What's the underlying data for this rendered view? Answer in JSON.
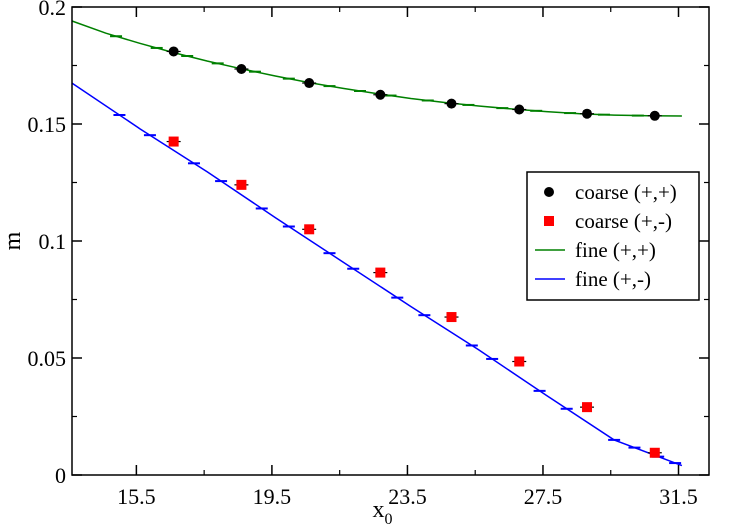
{
  "chart_data": {
    "type": "scatter",
    "xlabel": "x",
    "xlabel_sub": "0",
    "ylabel": "m",
    "xlim": [
      13.6,
      32.4
    ],
    "ylim": [
      0,
      0.2
    ],
    "xticks": [
      15.5,
      19.5,
      23.5,
      27.5,
      31.5
    ],
    "xtick_labels": [
      "15.5",
      "19.5",
      "23.5",
      "27.5",
      "31.5"
    ],
    "yticks": [
      0,
      0.05,
      0.1,
      0.15,
      0.2
    ],
    "ytick_labels": [
      "0",
      "0.05",
      "0.1",
      "0.15",
      "0.2"
    ],
    "legend_position": "right, middle",
    "series": [
      {
        "name": "coarse (+,+)",
        "kind": "points",
        "marker": "circle",
        "color": "#000000",
        "x": [
          16.6,
          18.6,
          20.6,
          22.7,
          24.8,
          26.8,
          28.8,
          30.8
        ],
        "y": [
          0.181,
          0.1735,
          0.1675,
          0.1625,
          0.1587,
          0.1562,
          0.1544,
          0.1535
        ]
      },
      {
        "name": "coarse (+,-)",
        "kind": "points",
        "marker": "square",
        "color": "#ff0000",
        "x": [
          16.6,
          18.6,
          20.6,
          22.7,
          24.8,
          26.8,
          28.8,
          30.8
        ],
        "y": [
          0.1425,
          0.124,
          0.105,
          0.0865,
          0.0675,
          0.0485,
          0.029,
          0.0095
        ]
      },
      {
        "name": "fine (+,+)",
        "kind": "line",
        "color": "#008000",
        "x": [
          13.6,
          14.6,
          15.6,
          16.6,
          17.6,
          18.6,
          19.6,
          20.6,
          21.6,
          22.6,
          23.6,
          24.6,
          25.6,
          26.6,
          27.6,
          28.6,
          29.6,
          30.6,
          31.6
        ],
        "y": [
          0.194,
          0.1888,
          0.1845,
          0.1805,
          0.1769,
          0.1736,
          0.1705,
          0.1677,
          0.1652,
          0.163,
          0.1609,
          0.1592,
          0.1577,
          0.1564,
          0.1553,
          0.1544,
          0.1538,
          0.1535,
          0.1534
        ]
      },
      {
        "name": "fine (+,-)",
        "kind": "line",
        "color": "#0000ff",
        "x": [
          13.6,
          15.6,
          17.6,
          19.6,
          21.6,
          23.6,
          25.6,
          27.6,
          29.6,
          31.6
        ],
        "y": [
          0.1675,
          0.148,
          0.1295,
          0.11,
          0.091,
          0.072,
          0.0535,
          0.034,
          0.015,
          0.004
        ]
      }
    ],
    "errorbar_ticks": {
      "green_x": [
        14.9,
        16.1,
        17.0,
        17.9,
        19.0,
        20.0,
        21.2,
        22.1,
        23.0,
        24.1,
        25.3,
        26.3,
        27.3,
        28.3,
        29.3,
        30.3
      ],
      "blue_x": [
        15.0,
        15.9,
        17.2,
        18.0,
        19.2,
        20.0,
        21.2,
        21.9,
        23.2,
        24.0,
        25.4,
        26.0,
        27.4,
        28.2,
        29.6,
        30.2,
        30.9,
        31.4
      ]
    }
  }
}
